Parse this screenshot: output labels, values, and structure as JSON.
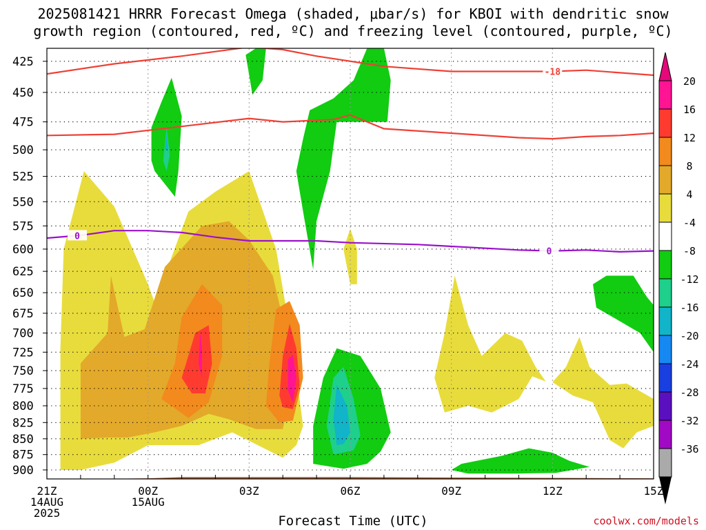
{
  "title_line1": "2025081421 HRRR Forecast Omega (shaded, μbar/s) for KBOI with dendritic snow",
  "title_line2": "growth region (contoured, red, ºC) and freezing level (contoured, purple, ºC)",
  "credit": "coolwx.com/models",
  "chart_data": {
    "type": "contour",
    "title": "2025081421 HRRR Forecast Omega (shaded, μbar/s) for KBOI with dendritic snow growth region (contoured, red, ºC) and freezing level (contoured, purple, ºC)",
    "xlabel": "Forecast Time (UTC)",
    "ylabel": "",
    "x_ticks": [
      {
        "hour": 0,
        "lines": [
          "21Z",
          "14AUG",
          "2025"
        ]
      },
      {
        "hour": 3,
        "lines": [
          "00Z",
          "15AUG"
        ]
      },
      {
        "hour": 6,
        "lines": [
          "03Z"
        ]
      },
      {
        "hour": 9,
        "lines": [
          "06Z"
        ]
      },
      {
        "hour": 12,
        "lines": [
          "09Z"
        ]
      },
      {
        "hour": 15,
        "lines": [
          "12Z"
        ]
      },
      {
        "hour": 18,
        "lines": [
          "15Z"
        ]
      }
    ],
    "xlim": [
      0,
      18
    ],
    "y_ticks": [
      425,
      450,
      475,
      500,
      525,
      550,
      575,
      600,
      625,
      650,
      675,
      700,
      725,
      750,
      775,
      800,
      825,
      850,
      875,
      900
    ],
    "ylim": [
      415,
      915
    ],
    "y_scale": "log",
    "y_inverted": true,
    "grid": true,
    "colorbar": {
      "labels": [
        "20",
        "16",
        "12",
        "8",
        "4",
        "-4",
        "-8",
        "-12",
        "-16",
        "-20",
        "-24",
        "-28",
        "-32",
        "-36"
      ],
      "colors": [
        "#ff1493",
        "#ff3b30",
        "#f28a1e",
        "#e3a92a",
        "#e8dc3c",
        "#ffffff",
        "#11cc11",
        "#1fcf8c",
        "#11b4c8",
        "#1688f2",
        "#1a3fe0",
        "#5b10c0",
        "#a10ac4",
        "#aaaaaa"
      ],
      "top_color": "#e4087a",
      "bottom_color": "#000000"
    },
    "series": [
      {
        "name": "-18",
        "color": "#ee4035",
        "x": [
          0,
          2,
          4,
          6,
          7,
          8,
          10,
          12,
          14,
          15,
          16,
          18
        ],
        "y": [
          435,
          427,
          421,
          414,
          416,
          421,
          429,
          433,
          433,
          433,
          432,
          436
        ]
      },
      {
        "name": "",
        "color": "#ee4035",
        "x": [
          0,
          2,
          4,
          6,
          7,
          8.5,
          9,
          10,
          12,
          14,
          15,
          16,
          17,
          18
        ],
        "y": [
          487,
          486,
          479,
          472,
          475,
          473,
          469,
          481,
          485,
          489,
          490,
          488,
          487,
          485
        ]
      },
      {
        "name": "0",
        "color": "#9a10cc",
        "x": [
          0,
          1,
          2,
          3,
          4,
          5,
          6,
          8,
          9,
          11,
          12,
          14,
          15,
          16,
          17,
          18
        ],
        "y": [
          588,
          585,
          580,
          580,
          582,
          587,
          591,
          591,
          593,
          595,
          597,
          601,
          602,
          601,
          603,
          602
        ]
      }
    ],
    "shaded_regions": [
      {
        "value": "4 to 8",
        "color": "#e8dc3c",
        "points": [
          [
            0.4,
            900
          ],
          [
            0.4,
            720
          ],
          [
            0.5,
            600
          ],
          [
            1.1,
            520
          ],
          [
            2.0,
            555
          ],
          [
            3.0,
            640
          ],
          [
            3.2,
            662
          ],
          [
            4.2,
            560
          ],
          [
            5.0,
            540
          ],
          [
            6.0,
            520
          ],
          [
            6.8,
            600
          ],
          [
            7.3,
            720
          ],
          [
            7.6,
            830
          ],
          [
            7.4,
            860
          ],
          [
            7.0,
            880
          ],
          [
            5.5,
            840
          ],
          [
            4.5,
            860
          ],
          [
            3.0,
            860
          ],
          [
            2.0,
            888
          ],
          [
            1.0,
            900
          ]
        ]
      },
      {
        "value": "4 to 8",
        "color": "#e8dc3c",
        "points": [
          [
            9.0,
            578
          ],
          [
            9.2,
            600
          ],
          [
            9.2,
            640
          ],
          [
            9.0,
            640
          ],
          [
            8.8,
            600
          ]
        ]
      },
      {
        "value": "4 to 8",
        "color": "#e8dc3c",
        "points": [
          [
            11.8,
            810
          ],
          [
            11.5,
            760
          ],
          [
            11.8,
            700
          ],
          [
            12.1,
            630
          ],
          [
            12.5,
            690
          ],
          [
            12.9,
            730
          ],
          [
            13.6,
            700
          ],
          [
            14.1,
            710
          ],
          [
            14.5,
            745
          ],
          [
            14.8,
            765
          ],
          [
            14.4,
            758
          ],
          [
            14.0,
            790
          ],
          [
            13.2,
            810
          ],
          [
            12.5,
            800
          ]
        ]
      },
      {
        "value": "4 to 8",
        "color": "#e8dc3c",
        "points": [
          [
            15.0,
            766
          ],
          [
            15.4,
            745
          ],
          [
            15.8,
            705
          ],
          [
            16.1,
            745
          ],
          [
            16.7,
            770
          ],
          [
            17.2,
            768
          ],
          [
            18.0,
            790
          ],
          [
            18.0,
            830
          ],
          [
            17.5,
            840
          ],
          [
            17.1,
            865
          ],
          [
            16.7,
            852
          ],
          [
            16.2,
            795
          ],
          [
            15.6,
            785
          ]
        ]
      },
      {
        "value": "8 to 12",
        "color": "#e3a92a",
        "points": [
          [
            1.0,
            850
          ],
          [
            1.0,
            740
          ],
          [
            1.8,
            700
          ],
          [
            1.9,
            630
          ],
          [
            2.3,
            705
          ],
          [
            2.9,
            695
          ],
          [
            3.5,
            620
          ],
          [
            4.6,
            575
          ],
          [
            5.4,
            570
          ],
          [
            6.0,
            590
          ],
          [
            6.7,
            630
          ],
          [
            7.1,
            700
          ],
          [
            7.2,
            790
          ],
          [
            7.0,
            835
          ],
          [
            6.2,
            835
          ],
          [
            5.4,
            820
          ],
          [
            4.8,
            812
          ],
          [
            4.0,
            830
          ],
          [
            3.2,
            840
          ],
          [
            2.4,
            848
          ],
          [
            1.8,
            848
          ]
        ]
      },
      {
        "value": "12 to 16",
        "color": "#f28a1e",
        "points": [
          [
            3.4,
            790
          ],
          [
            3.8,
            740
          ],
          [
            4.0,
            680
          ],
          [
            4.6,
            640
          ],
          [
            5.2,
            665
          ],
          [
            5.2,
            730
          ],
          [
            4.8,
            795
          ],
          [
            4.2,
            818
          ]
        ]
      },
      {
        "value": "12 to 16",
        "color": "#f28a1e",
        "points": [
          [
            6.5,
            800
          ],
          [
            6.6,
            740
          ],
          [
            6.8,
            670
          ],
          [
            7.2,
            660
          ],
          [
            7.5,
            690
          ],
          [
            7.6,
            760
          ],
          [
            7.3,
            822
          ],
          [
            6.9,
            825
          ]
        ]
      },
      {
        "value": "16 to 20",
        "color": "#ff3b30",
        "points": [
          [
            4.0,
            760
          ],
          [
            4.4,
            700
          ],
          [
            4.8,
            690
          ],
          [
            4.9,
            740
          ],
          [
            4.7,
            782
          ],
          [
            4.3,
            782
          ]
        ]
      },
      {
        "value": "16 to 20",
        "color": "#ff3b30",
        "points": [
          [
            6.9,
            785
          ],
          [
            7.0,
            730
          ],
          [
            7.2,
            688
          ],
          [
            7.4,
            720
          ],
          [
            7.5,
            770
          ],
          [
            7.3,
            805
          ],
          [
            7.0,
            802
          ]
        ]
      },
      {
        "value": "20+",
        "color": "#ff1493",
        "points": [
          [
            4.55,
            700
          ],
          [
            4.6,
            720
          ],
          [
            4.6,
            760
          ],
          [
            4.5,
            740
          ]
        ]
      },
      {
        "value": "20+",
        "color": "#ff1493",
        "points": [
          [
            7.15,
            735
          ],
          [
            7.3,
            728
          ],
          [
            7.4,
            760
          ],
          [
            7.3,
            795
          ],
          [
            7.15,
            778
          ]
        ]
      },
      {
        "value": "-4 to -8",
        "color": "#11cc11",
        "points": [
          [
            3.1,
            510
          ],
          [
            3.1,
            480
          ],
          [
            3.4,
            458
          ],
          [
            3.7,
            438
          ],
          [
            4.0,
            470
          ],
          [
            3.9,
            520
          ],
          [
            3.8,
            545
          ],
          [
            3.2,
            520
          ]
        ]
      },
      {
        "value": "-4 to -8",
        "color": "#11cc11",
        "points": [
          [
            6.2,
            415
          ],
          [
            6.5,
            415
          ],
          [
            6.4,
            440
          ],
          [
            6.1,
            452
          ],
          [
            5.9,
            420
          ]
        ]
      },
      {
        "value": "-4 to -8",
        "color": "#11cc11",
        "points": [
          [
            7.6,
            490
          ],
          [
            7.8,
            465
          ],
          [
            8.5,
            455
          ],
          [
            9.1,
            440
          ],
          [
            9.5,
            415
          ],
          [
            10.0,
            415
          ],
          [
            10.2,
            440
          ],
          [
            10.1,
            475
          ],
          [
            9.4,
            475
          ],
          [
            8.6,
            475
          ],
          [
            8.4,
            520
          ],
          [
            8.0,
            570
          ],
          [
            7.9,
            623
          ],
          [
            7.6,
            560
          ],
          [
            7.4,
            520
          ]
        ]
      },
      {
        "value": "-4 to -8",
        "color": "#11cc11",
        "points": [
          [
            7.9,
            890
          ],
          [
            7.9,
            830
          ],
          [
            8.2,
            760
          ],
          [
            8.6,
            720
          ],
          [
            9.3,
            730
          ],
          [
            9.9,
            775
          ],
          [
            10.2,
            840
          ],
          [
            9.9,
            870
          ],
          [
            9.5,
            890
          ],
          [
            8.8,
            898
          ]
        ]
      },
      {
        "value": "-4 to -8",
        "color": "#11cc11",
        "points": [
          [
            12.0,
            900
          ],
          [
            12.3,
            890
          ],
          [
            13.5,
            877
          ],
          [
            14.3,
            865
          ],
          [
            15.0,
            872
          ],
          [
            15.5,
            885
          ],
          [
            16.1,
            895
          ],
          [
            15.1,
            905
          ],
          [
            14.0,
            906
          ],
          [
            12.5,
            906
          ]
        ]
      },
      {
        "value": "-4 to -8",
        "color": "#11cc11",
        "points": [
          [
            16.2,
            640
          ],
          [
            16.6,
            630
          ],
          [
            17.4,
            630
          ],
          [
            17.8,
            655
          ],
          [
            18.0,
            665
          ],
          [
            18.0,
            725
          ],
          [
            17.6,
            700
          ],
          [
            17.0,
            685
          ],
          [
            16.3,
            668
          ]
        ]
      },
      {
        "value": "-8 to -12",
        "color": "#1fcf8c",
        "points": [
          [
            3.45,
            510
          ],
          [
            3.55,
            480
          ],
          [
            3.65,
            505
          ],
          [
            3.55,
            520
          ]
        ]
      },
      {
        "value": "-8 to -12",
        "color": "#1fcf8c",
        "points": [
          [
            8.5,
            875
          ],
          [
            8.3,
            830
          ],
          [
            8.5,
            760
          ],
          [
            8.8,
            745
          ],
          [
            9.1,
            790
          ],
          [
            9.3,
            845
          ],
          [
            9.1,
            868
          ]
        ]
      },
      {
        "value": "-12 to -16",
        "color": "#11b4c8",
        "points": [
          [
            8.6,
            860
          ],
          [
            8.5,
            820
          ],
          [
            8.6,
            770
          ],
          [
            8.9,
            800
          ],
          [
            9.0,
            840
          ],
          [
            8.8,
            858
          ]
        ]
      },
      {
        "value": "-12 to -16",
        "color": "#11b4c8",
        "points": [
          [
            3.5,
            500
          ],
          [
            3.55,
            485
          ],
          [
            3.6,
            500
          ]
        ]
      }
    ],
    "surface": {
      "color": "#a0552a",
      "x": [
        0,
        3,
        4,
        9,
        18
      ],
      "y": [
        916,
        914,
        912,
        912,
        914
      ]
    }
  }
}
